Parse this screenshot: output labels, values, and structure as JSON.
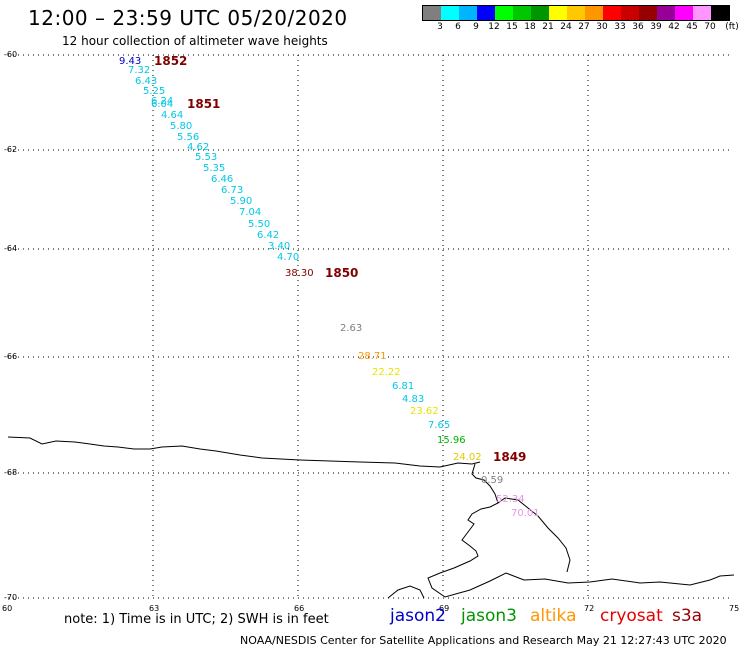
{
  "header": {
    "title": "12:00 – 23:59 UTC 05/20/2020",
    "subtitle": "12 hour collection of altimeter wave heights"
  },
  "colorbar": {
    "colors": [
      "#7f7f7f",
      "#00ffff",
      "#00b4ff",
      "#0000ff",
      "#00ff00",
      "#00c800",
      "#009600",
      "#ffff00",
      "#ffc800",
      "#ff9600",
      "#ff0000",
      "#c80000",
      "#960000",
      "#960096",
      "#ff00ff",
      "#ff96ff",
      "#000000"
    ],
    "labels": [
      "3",
      "6",
      "9",
      "12",
      "15",
      "18",
      "21",
      "24",
      "27",
      "30",
      "33",
      "36",
      "39",
      "42",
      "45",
      "70"
    ],
    "unit": "(ft)"
  },
  "axes": {
    "lon_ticks": [
      "60",
      "63",
      "66",
      "69",
      "72",
      "75"
    ],
    "lat_ticks": [
      "-60",
      "-62",
      "-64",
      "-66",
      "-68",
      "-70"
    ]
  },
  "time_labels": [
    {
      "text": "1852",
      "color": "#800000"
    },
    {
      "text": "1851",
      "color": "#800000"
    },
    {
      "text": "1850",
      "color": "#800000"
    },
    {
      "text": "1849",
      "color": "#800000"
    }
  ],
  "wave_heights": [
    {
      "text": "9.43",
      "color": "#0000cc"
    },
    {
      "text": "7.32",
      "color": "#00c8e6"
    },
    {
      "text": "6.43",
      "color": "#00c8e6"
    },
    {
      "text": "5.25",
      "color": "#00c8e6"
    },
    {
      "text": "6.24",
      "color": "#00c8e6"
    },
    {
      "text": "6.04",
      "color": "#00c8e6"
    },
    {
      "text": "4.64",
      "color": "#00c8e6"
    },
    {
      "text": "5.80",
      "color": "#00c8e6"
    },
    {
      "text": "5.56",
      "color": "#00c8e6"
    },
    {
      "text": "4.62",
      "color": "#00c8e6"
    },
    {
      "text": "5.53",
      "color": "#00c8e6"
    },
    {
      "text": "5.35",
      "color": "#00c8e6"
    },
    {
      "text": "6.46",
      "color": "#00c8e6"
    },
    {
      "text": "6.73",
      "color": "#00c8e6"
    },
    {
      "text": "5.90",
      "color": "#00c8e6"
    },
    {
      "text": "7.04",
      "color": "#00c8e6"
    },
    {
      "text": "5.50",
      "color": "#00c8e6"
    },
    {
      "text": "6.42",
      "color": "#00c8e6"
    },
    {
      "text": "3.40",
      "color": "#00c8e6"
    },
    {
      "text": "4.70",
      "color": "#00c8e6"
    },
    {
      "text": "38.30",
      "color": "#800000"
    },
    {
      "text": "2.63",
      "color": "#808080"
    },
    {
      "text": "28.71",
      "color": "#ff9600"
    },
    {
      "text": "22.22",
      "color": "#e6e600"
    },
    {
      "text": "6.81",
      "color": "#00c8e6"
    },
    {
      "text": "4.83",
      "color": "#00c8e6"
    },
    {
      "text": "23.62",
      "color": "#e6e600"
    },
    {
      "text": "7.65",
      "color": "#00c8e6"
    },
    {
      "text": "15.96",
      "color": "#00b400"
    },
    {
      "text": "24.02",
      "color": "#e6c800"
    },
    {
      "text": "0.59",
      "color": "#808080"
    },
    {
      "text": "52.34",
      "color": "#e696e6"
    },
    {
      "text": "70.01",
      "color": "#e696e6"
    }
  ],
  "footer": {
    "note": "note: 1) Time is in UTC; 2) SWH is in feet",
    "missions": [
      {
        "text": "jason2",
        "color": "#0000cc"
      },
      {
        "text": "jason3",
        "color": "#009600"
      },
      {
        "text": "altika",
        "color": "#ff9600"
      },
      {
        "text": "cryosat",
        "color": "#e60000"
      },
      {
        "text": "s3a",
        "color": "#960000"
      }
    ],
    "credit": "NOAA/NESDIS Center for Satellite Applications and Research     May 21 12:27:43 UTC 2020"
  }
}
